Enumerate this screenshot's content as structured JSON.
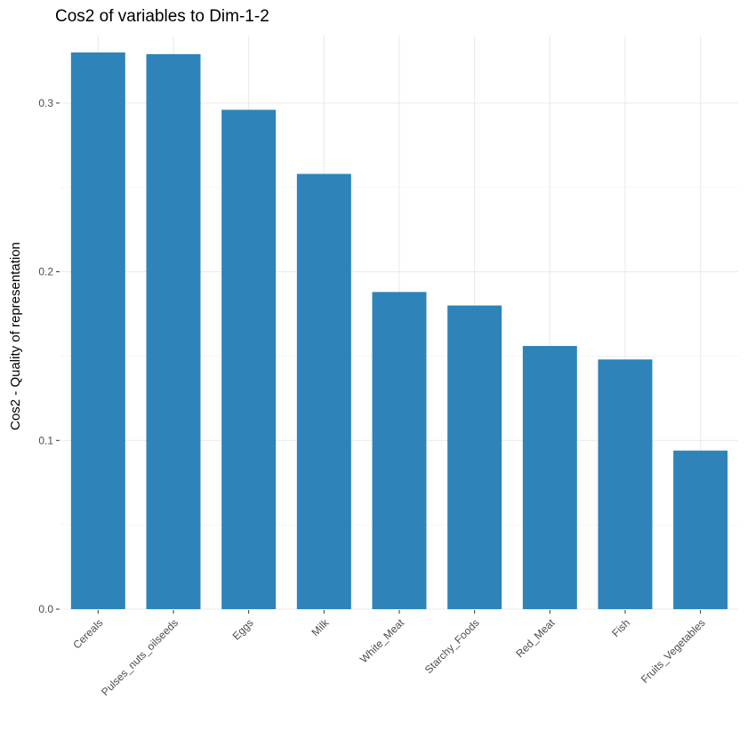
{
  "chart_data": {
    "type": "bar",
    "title": "Cos2 of variables to Dim-1-2",
    "xlabel": "",
    "ylabel": "Cos2 - Quality of representation",
    "categories": [
      "Cereals",
      "Pulses_nuts_oilseeds",
      "Eggs",
      "Milk",
      "White_Meat",
      "Starchy_Foods",
      "Red_Meat",
      "Fish",
      "Fruits_Vegetables"
    ],
    "values": [
      0.33,
      0.329,
      0.296,
      0.258,
      0.188,
      0.18,
      0.156,
      0.148,
      0.094
    ],
    "ylim": [
      0,
      0.34
    ],
    "yticks": [
      0.0,
      0.1,
      0.2,
      0.3
    ],
    "ytick_labels": [
      "0.0",
      "0.1",
      "0.2",
      "0.3"
    ],
    "grid": true,
    "bar_color": "#2E83B9",
    "grid_major_color": "#EBEBEB",
    "grid_minor_color": "#F5F5F5"
  }
}
